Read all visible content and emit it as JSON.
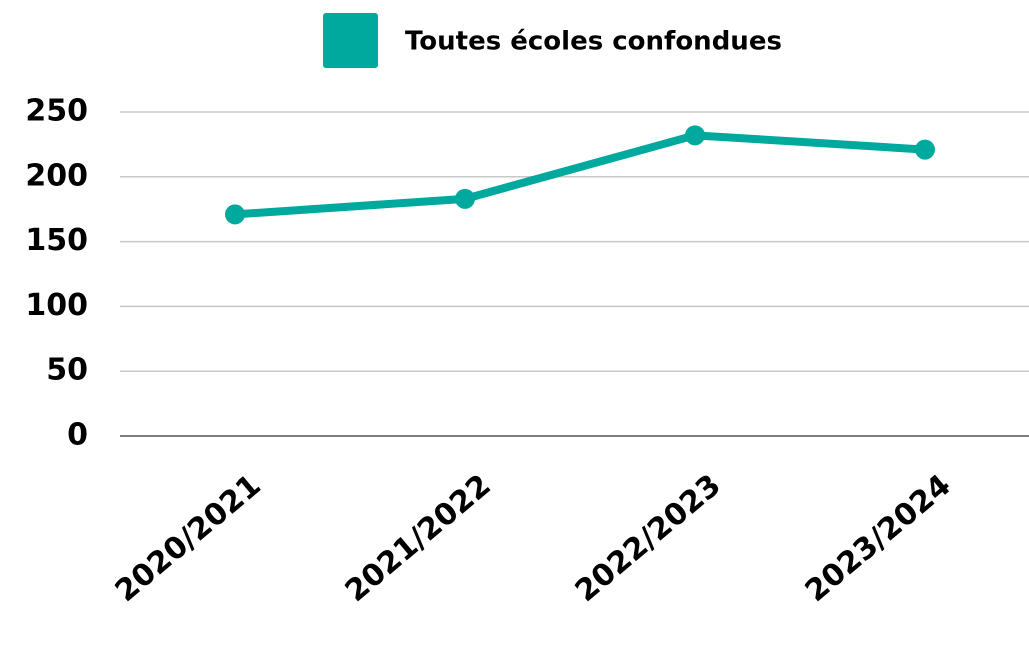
{
  "chart_data": {
    "type": "line",
    "categories": [
      "2020/2021",
      "2021/2022",
      "2022/2023",
      "2023/2024"
    ],
    "series": [
      {
        "name": "Toutes écoles confondues",
        "color": "#00a99d",
        "values": [
          171,
          183,
          232,
          221
        ]
      }
    ],
    "ylim": [
      0,
      250
    ],
    "yticks": [
      0,
      50,
      100,
      150,
      200,
      250
    ],
    "grid": true,
    "legend": "top"
  }
}
